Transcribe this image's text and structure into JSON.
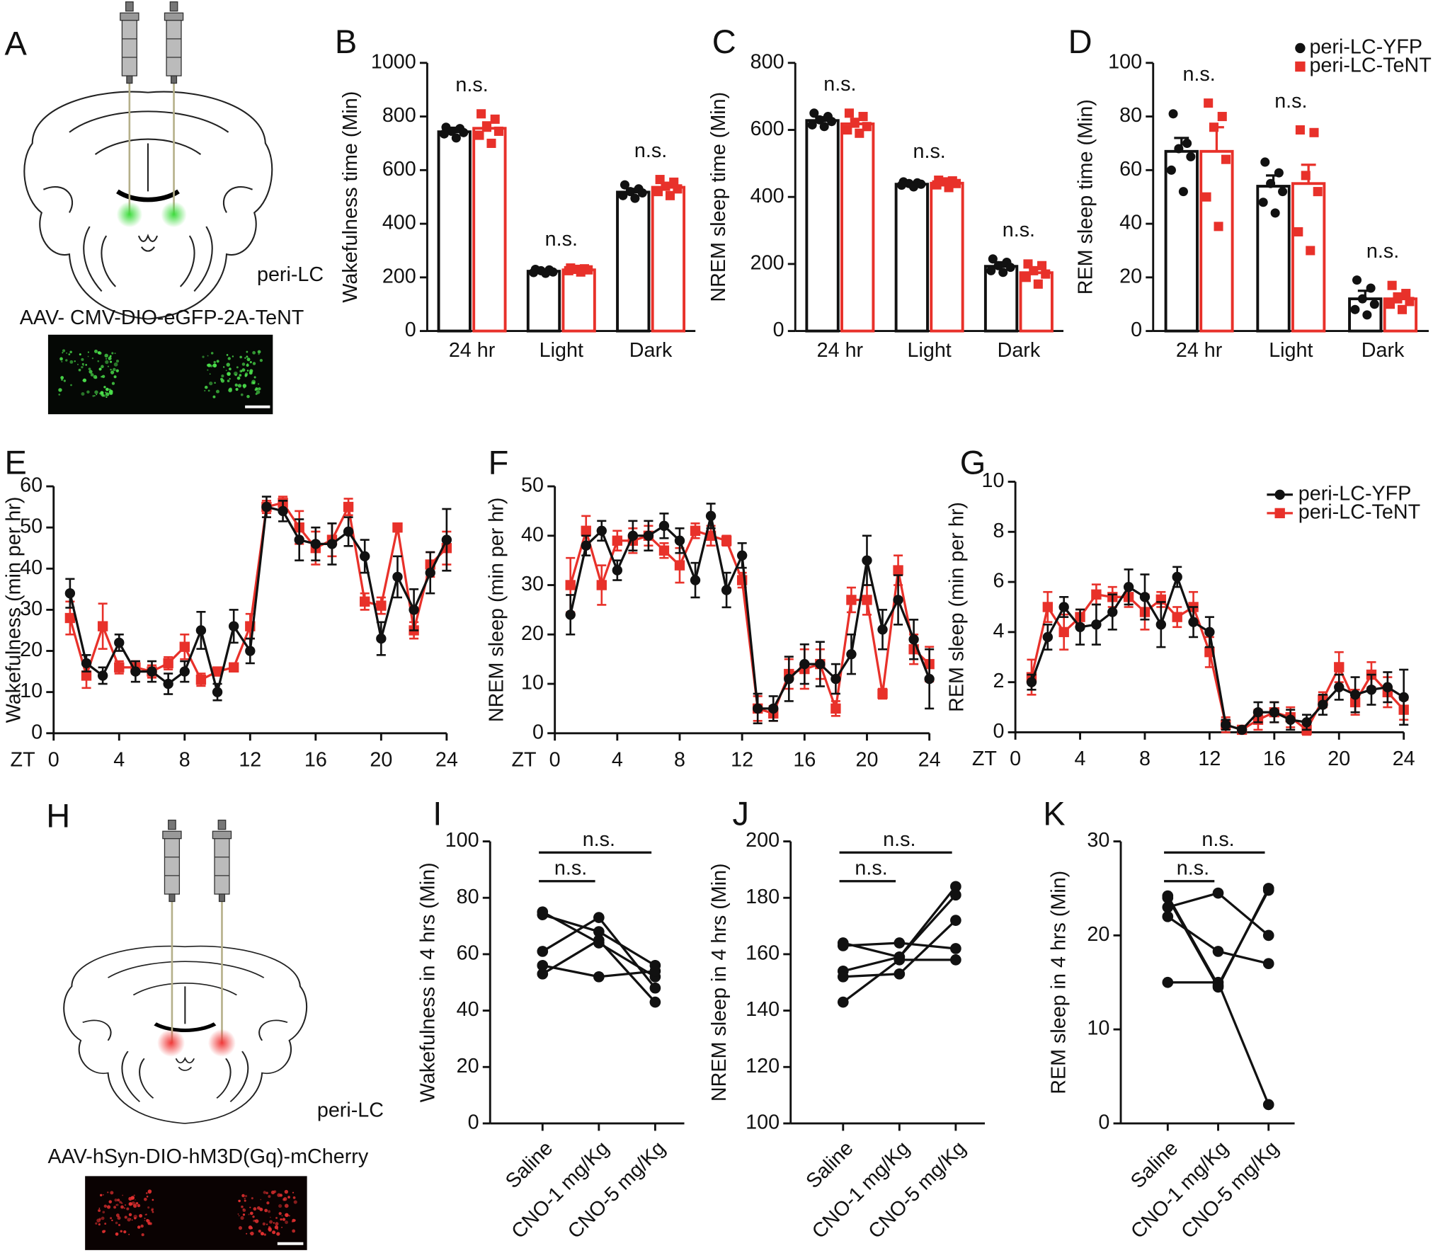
{
  "diagrams": [
    {
      "panel": "A",
      "region": "peri-LC",
      "virus": "AAV- CMV-DIO-eGFP-2A-TeNT"
    },
    {
      "panel": "H",
      "region": "peri-LC",
      "virus": "AAV-hSyn-DIO-hM3D(Gq)-mCherry"
    }
  ],
  "chart_data": [
    {
      "type": "bar",
      "panel": "B",
      "ylabel": "Wakefulness time (Min)",
      "categories": [
        "24 hr",
        "Light",
        "Dark"
      ],
      "annotations": [
        "n.s.",
        "n.s.",
        "n.s."
      ],
      "ylim": [
        0,
        1000
      ],
      "yticks": [
        0,
        200,
        400,
        600,
        800,
        1000
      ],
      "series": [
        {
          "color": "#111111",
          "marker": "circle",
          "values": [
            743,
            223,
            518
          ],
          "errors": [
            15,
            5,
            12
          ],
          "points": [
            [
              760,
              755,
              745,
              740,
              735,
              720
            ],
            [
              230,
              228,
              225,
              220,
              218,
              215
            ],
            [
              545,
              530,
              520,
              515,
              505,
              495
            ]
          ]
        },
        {
          "color": "#e8312a",
          "marker": "square",
          "values": [
            756,
            228,
            536
          ],
          "errors": [
            22,
            4,
            15
          ],
          "points": [
            [
              810,
              790,
              760,
              745,
              730,
              700
            ],
            [
              235,
              232,
              230,
              228,
              225,
              220
            ],
            [
              565,
              555,
              540,
              530,
              520,
              505
            ]
          ]
        }
      ]
    },
    {
      "type": "bar",
      "panel": "C",
      "ylabel": "NREM sleep time (Min)",
      "categories": [
        "24 hr",
        "Light",
        "Dark"
      ],
      "annotations": [
        "n.s.",
        "n.s.",
        "n.s."
      ],
      "ylim": [
        0,
        800
      ],
      "yticks": [
        0,
        200,
        400,
        600,
        800
      ],
      "series": [
        {
          "color": "#111111",
          "marker": "circle",
          "values": [
            628,
            438,
            193
          ],
          "errors": [
            10,
            4,
            12
          ],
          "points": [
            [
              650,
              640,
              630,
              625,
              615,
              610
            ],
            [
              445,
              442,
              440,
              438,
              435,
              430
            ],
            [
              215,
              205,
              195,
              190,
              180,
              175
            ]
          ]
        },
        {
          "color": "#e8312a",
          "marker": "square",
          "values": [
            618,
            441,
            174
          ],
          "errors": [
            15,
            5,
            14
          ],
          "points": [
            [
              650,
              640,
              620,
              610,
              600,
              590
            ],
            [
              450,
              448,
              445,
              440,
              436,
              428
            ],
            [
              200,
              195,
              180,
              170,
              160,
              140
            ]
          ]
        }
      ]
    },
    {
      "type": "bar",
      "panel": "D",
      "ylabel": "REM sleep time (Min)",
      "categories": [
        "24 hr",
        "Light",
        "Dark"
      ],
      "annotations": [
        "n.s.",
        "n.s.",
        "n.s."
      ],
      "ylim": [
        0,
        100
      ],
      "yticks": [
        0,
        20,
        40,
        60,
        80,
        100
      ],
      "legend": "upper right",
      "series": [
        {
          "name": "peri-LC-YFP",
          "color": "#111111",
          "marker": "circle",
          "values": [
            67,
            54,
            12
          ],
          "errors": [
            5,
            4,
            3
          ],
          "points": [
            [
              81,
              70,
              68,
              65,
              60,
              52
            ],
            [
              63,
              59,
              55,
              52,
              48,
              44
            ],
            [
              19,
              16,
              12,
              10,
              8,
              6
            ]
          ]
        },
        {
          "name": "peri-LC-TeNT",
          "color": "#e8312a",
          "marker": "square",
          "values": [
            67,
            55,
            12
          ],
          "errors": [
            9,
            7,
            2
          ],
          "points": [
            [
              85,
              80,
              76,
              64,
              50,
              39
            ],
            [
              75,
              74,
              58,
              52,
              37,
              30
            ],
            [
              17,
              14,
              12,
              11,
              10,
              8
            ]
          ]
        }
      ]
    },
    {
      "type": "line",
      "panel": "E",
      "ylabel": "Wakefulness (min per hr)",
      "xlabel": "ZT",
      "x": [
        1,
        2,
        3,
        4,
        5,
        6,
        7,
        8,
        9,
        10,
        11,
        12,
        13,
        14,
        15,
        16,
        17,
        18,
        19,
        20,
        21,
        22,
        23,
        24
      ],
      "xlim": [
        0,
        24
      ],
      "xticks": [
        0,
        4,
        8,
        12,
        16,
        20,
        24
      ],
      "ylim": [
        0,
        60
      ],
      "yticks": [
        0,
        10,
        20,
        30,
        40,
        50,
        60
      ],
      "series": [
        {
          "color": "#111111",
          "marker": "circle",
          "values": [
            34,
            17,
            14,
            22,
            15,
            15,
            12,
            15,
            25,
            10,
            26,
            20,
            55,
            54,
            47,
            46,
            46,
            49,
            43,
            23,
            38,
            30,
            39,
            47
          ],
          "errors": [
            3.5,
            2,
            2,
            2,
            2.5,
            2.5,
            2.5,
            2.5,
            4.5,
            2,
            4,
            3,
            2.5,
            2.5,
            5,
            4,
            5,
            3.5,
            4,
            4,
            5,
            5,
            5,
            7.5
          ]
        },
        {
          "color": "#e8312a",
          "marker": "square",
          "values": [
            28,
            14,
            26,
            16,
            16,
            15,
            17,
            21,
            13,
            15,
            16,
            26,
            55,
            56,
            50,
            45,
            47,
            55,
            32,
            31,
            50,
            25,
            41,
            45
          ],
          "errors": [
            4,
            3,
            5.5,
            1.5,
            1.5,
            1.5,
            1.5,
            3,
            1.5,
            1,
            1,
            3,
            1.5,
            1.5,
            4,
            4,
            4,
            2,
            2,
            2,
            1,
            2,
            3,
            4
          ]
        }
      ]
    },
    {
      "type": "line",
      "panel": "F",
      "ylabel": "NREM sleep (min per hr)",
      "xlabel": "ZT",
      "x": [
        1,
        2,
        3,
        4,
        5,
        6,
        7,
        8,
        9,
        10,
        11,
        12,
        13,
        14,
        15,
        16,
        17,
        18,
        19,
        20,
        21,
        22,
        23,
        24
      ],
      "xlim": [
        0,
        24
      ],
      "xticks": [
        0,
        4,
        8,
        12,
        16,
        20,
        24
      ],
      "ylim": [
        0,
        50
      ],
      "yticks": [
        0,
        10,
        20,
        30,
        40,
        50
      ],
      "series": [
        {
          "color": "#111111",
          "marker": "circle",
          "values": [
            24,
            38,
            41,
            33,
            40,
            40,
            42,
            39,
            31,
            44,
            29,
            36,
            5,
            5,
            11,
            14,
            14,
            11,
            16,
            35,
            21,
            27,
            19,
            11
          ],
          "errors": [
            4,
            2,
            2,
            2,
            3,
            3,
            2.5,
            2.5,
            3.5,
            2.5,
            3.5,
            2.5,
            3,
            2.5,
            4.5,
            4,
            4.5,
            3,
            4,
            5,
            4,
            5,
            4,
            6
          ]
        },
        {
          "color": "#e8312a",
          "marker": "square",
          "values": [
            30,
            41,
            30,
            39,
            39,
            40,
            37,
            34,
            41,
            40,
            39,
            31,
            5,
            4,
            12,
            13,
            14,
            5,
            27,
            27,
            8,
            33,
            17,
            14
          ],
          "errors": [
            5.5,
            3,
            4,
            2,
            2.5,
            2,
            1.5,
            3.5,
            1.5,
            2,
            1,
            1.5,
            2.5,
            1.5,
            3,
            4,
            3,
            1.5,
            2.5,
            3,
            1,
            3,
            3,
            3.5
          ]
        }
      ]
    },
    {
      "type": "line",
      "panel": "G",
      "ylabel": "REM sleep (min per hr)",
      "xlabel": "ZT",
      "legend": "upper right",
      "x": [
        1,
        2,
        3,
        4,
        5,
        6,
        7,
        8,
        9,
        10,
        11,
        12,
        13,
        14,
        15,
        16,
        17,
        18,
        19,
        20,
        21,
        22,
        23,
        24
      ],
      "xlim": [
        0,
        24
      ],
      "xticks": [
        0,
        4,
        8,
        12,
        16,
        20,
        24
      ],
      "ylim": [
        0,
        10
      ],
      "yticks": [
        0,
        2,
        4,
        6,
        8,
        10
      ],
      "series": [
        {
          "name": "peri-LC-YFP",
          "color": "#111111",
          "marker": "circle",
          "values": [
            2,
            3.8,
            5,
            4.2,
            4.3,
            4.8,
            5.8,
            5.4,
            4.3,
            6.2,
            4.4,
            4,
            0.3,
            0.1,
            0.8,
            0.8,
            0.5,
            0.4,
            1.1,
            1.8,
            1.5,
            1.7,
            1.8,
            1.4
          ],
          "errors": [
            0.3,
            0.5,
            0.4,
            0.7,
            0.8,
            0.7,
            0.7,
            0.9,
            0.9,
            0.4,
            0.6,
            0.6,
            0.2,
            0.1,
            0.4,
            0.4,
            0.4,
            0.3,
            0.4,
            0.5,
            0.7,
            0.6,
            0.6,
            1.1
          ]
        },
        {
          "name": "peri-LC-TeNT",
          "color": "#e8312a",
          "marker": "square",
          "values": [
            2.2,
            5,
            4,
            4.6,
            5.5,
            5.4,
            5.4,
            4.8,
            5.3,
            4.6,
            5,
            3.2,
            0.3,
            0.1,
            0.5,
            0.8,
            0.6,
            0.1,
            1.3,
            2.6,
            1.2,
            2.3,
            1.6,
            0.9
          ],
          "errors": [
            0.7,
            0.6,
            0.7,
            0.3,
            0.4,
            0.4,
            0.4,
            0.7,
            0.3,
            0.4,
            0.6,
            0.6,
            0.3,
            0.1,
            0.4,
            0.4,
            0.4,
            0.2,
            0.3,
            0.6,
            0.5,
            0.5,
            0.6,
            0.4
          ]
        }
      ]
    },
    {
      "type": "line",
      "panel": "I",
      "ylabel": "Wakefulness in 4 hrs (Min)",
      "categories": [
        "Saline",
        "CNO-1 mg/Kg",
        "CNO-5 mg/Kg"
      ],
      "ylim": [
        0,
        100
      ],
      "yticks": [
        0,
        20,
        40,
        60,
        80,
        100
      ],
      "comparisons": [
        {
          "groups": [
            "Saline",
            "CNO-1 mg/Kg"
          ],
          "label": "n.s."
        },
        {
          "groups": [
            "Saline",
            "CNO-5 mg/Kg"
          ],
          "label": "n.s."
        }
      ],
      "series": [
        {
          "color": "#111111",
          "values": [
            75,
            64,
            52
          ]
        },
        {
          "color": "#111111",
          "values": [
            74,
            68,
            56
          ]
        },
        {
          "color": "#111111",
          "values": [
            61,
            73,
            48
          ]
        },
        {
          "color": "#111111",
          "values": [
            56,
            52,
            54
          ]
        },
        {
          "color": "#111111",
          "values": [
            53,
            65,
            43
          ]
        }
      ]
    },
    {
      "type": "line",
      "panel": "J",
      "ylabel": "NREM sleep in 4 hrs (Min)",
      "categories": [
        "Saline",
        "CNO-1 mg/Kg",
        "CNO-5 mg/Kg"
      ],
      "ylim": [
        100,
        200
      ],
      "yticks": [
        100,
        120,
        140,
        160,
        180,
        200
      ],
      "comparisons": [
        {
          "groups": [
            "Saline",
            "CNO-1 mg/Kg"
          ],
          "label": "n.s."
        },
        {
          "groups": [
            "Saline",
            "CNO-5 mg/Kg"
          ],
          "label": "n.s."
        }
      ],
      "series": [
        {
          "color": "#111111",
          "values": [
            164,
            159,
            184
          ]
        },
        {
          "color": "#111111",
          "values": [
            163,
            164,
            162
          ]
        },
        {
          "color": "#111111",
          "values": [
            154,
            159,
            181
          ]
        },
        {
          "color": "#111111",
          "values": [
            152,
            153,
            172
          ]
        },
        {
          "color": "#111111",
          "values": [
            143,
            158,
            158
          ]
        }
      ]
    },
    {
      "type": "line",
      "panel": "K",
      "ylabel": "REM sleep in 4 hrs (Min)",
      "categories": [
        "Saline",
        "CNO-1 mg/Kg",
        "CNO-5 mg/Kg"
      ],
      "ylim": [
        0,
        30
      ],
      "yticks": [
        0,
        10,
        20,
        30
      ],
      "comparisons": [
        {
          "groups": [
            "Saline",
            "CNO-1 mg/Kg"
          ],
          "label": "n.s."
        },
        {
          "groups": [
            "Saline",
            "CNO-5 mg/Kg"
          ],
          "label": "n.s."
        }
      ],
      "series": [
        {
          "color": "#111111",
          "values": [
            24,
            14.5,
            25
          ]
        },
        {
          "color": "#111111",
          "values": [
            23,
            24.5,
            20
          ]
        },
        {
          "color": "#111111",
          "values": [
            22,
            18.3,
            17
          ]
        },
        {
          "color": "#111111",
          "values": [
            15,
            15,
            2
          ]
        },
        {
          "color": "#111111",
          "values": [
            24.2,
            14.7,
            24.8
          ]
        }
      ]
    }
  ]
}
